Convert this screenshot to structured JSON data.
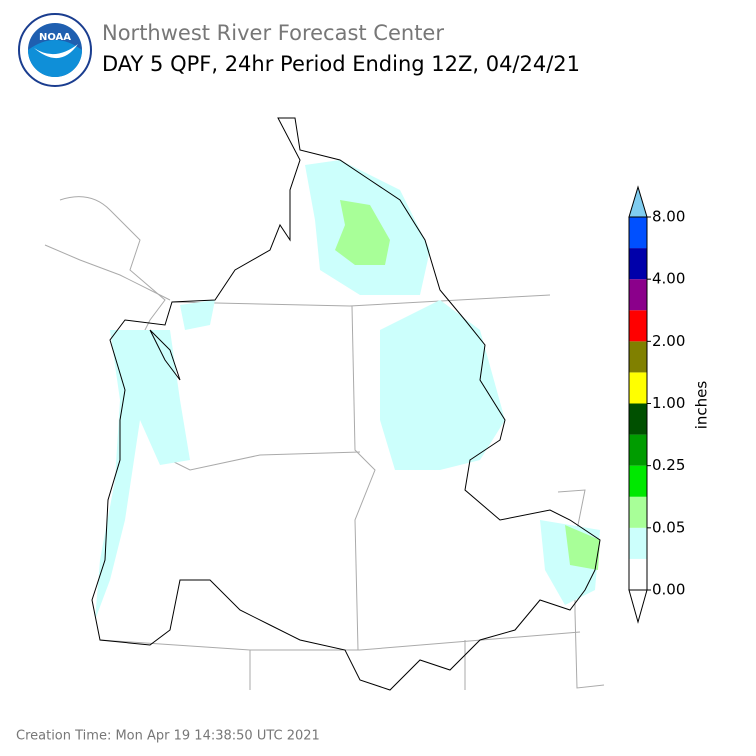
{
  "header": {
    "logo_text": "NOAA",
    "title": "Northwest River Forecast Center",
    "subtitle": "DAY 5 QPF, 24hr Period Ending 12Z, 04/24/21"
  },
  "legend": {
    "label": "inches",
    "under_color": "#ffffff",
    "over_color": "#80cdf0",
    "colors": [
      "#ffffff",
      "#ccfffc",
      "#a8ff98",
      "#00e800",
      "#009c00",
      "#005000",
      "#ffff00",
      "#808000",
      "#ff0000",
      "#8b008b",
      "#0000aa",
      "#0050ff"
    ],
    "ticks": [
      "0.00",
      "0.05",
      "0.25",
      "1.00",
      "2.00",
      "4.00",
      "8.00"
    ]
  },
  "footer": "Creation Time: Mon Apr 19 14:38:50 UTC 2021"
}
